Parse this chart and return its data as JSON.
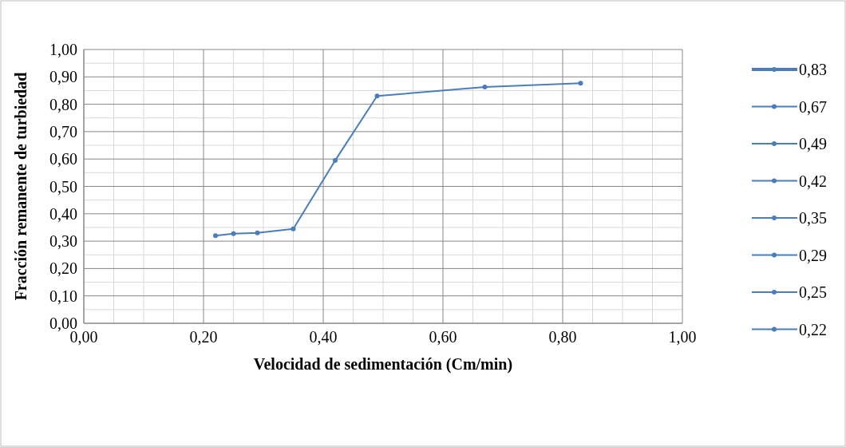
{
  "chart_data": {
    "type": "line",
    "xlabel": "Velocidad de sedimentación (Cm/min)",
    "ylabel": "Fracción remanente de turbiedad",
    "xlim": [
      0,
      1
    ],
    "xticks": [
      {
        "value": 0,
        "label": "0,00"
      },
      {
        "value": 0.2,
        "label": "0,20"
      },
      {
        "value": 0.4,
        "label": "0,40"
      },
      {
        "value": 0.6,
        "label": "0,60"
      },
      {
        "value": 0.8,
        "label": "0,80"
      },
      {
        "value": 1,
        "label": "1,00"
      }
    ],
    "ylim": [
      0,
      1
    ],
    "yticks": [
      {
        "value": 0,
        "label": "0,00"
      },
      {
        "value": 0.1,
        "label": "0,10"
      },
      {
        "value": 0.2,
        "label": "0,20"
      },
      {
        "value": 0.3,
        "label": "0,30"
      },
      {
        "value": 0.4,
        "label": "0,40"
      },
      {
        "value": 0.5,
        "label": "0,50"
      },
      {
        "value": 0.6,
        "label": "0,60"
      },
      {
        "value": 0.7,
        "label": "0,70"
      },
      {
        "value": 0.8,
        "label": "0,80"
      },
      {
        "value": 0.9,
        "label": "0,90"
      },
      {
        "value": 1,
        "label": "1,00"
      }
    ],
    "grid": true,
    "legend": "right",
    "marker": "circle",
    "line_style": "solid",
    "series": [
      {
        "color": "#4a7ebb",
        "marker": "none",
        "x": [
          0.22,
          0.25,
          0.29,
          0.35,
          0.42,
          0.49,
          0.67,
          0.83
        ],
        "values": [
          0.32,
          0.327,
          0.33,
          0.345,
          0.595,
          0.83,
          0.863,
          0.877
        ]
      },
      {
        "name": "0,83",
        "color": "#4a7ebb",
        "x": [
          0.83
        ],
        "values": [
          0.877
        ]
      },
      {
        "name": "0,67",
        "color": "#4a7ebb",
        "x": [
          0.67
        ],
        "values": [
          0.863
        ]
      },
      {
        "name": "0,49",
        "color": "#4a7ebb",
        "x": [
          0.49
        ],
        "values": [
          0.83
        ]
      },
      {
        "name": "0,42",
        "color": "#4a7ebb",
        "x": [
          0.42
        ],
        "values": [
          0.595
        ]
      },
      {
        "name": "0,35",
        "color": "#4a7ebb",
        "x": [
          0.35
        ],
        "values": [
          0.345
        ]
      },
      {
        "name": "0,29",
        "color": "#4a7ebb",
        "x": [
          0.29
        ],
        "values": [
          0.33
        ]
      },
      {
        "name": "0,25",
        "color": "#4a7ebb",
        "x": [
          0.25
        ],
        "values": [
          0.327
        ]
      },
      {
        "name": "0,22",
        "color": "#4a7ebb",
        "x": [
          0.22
        ],
        "values": [
          0.32
        ]
      }
    ]
  }
}
